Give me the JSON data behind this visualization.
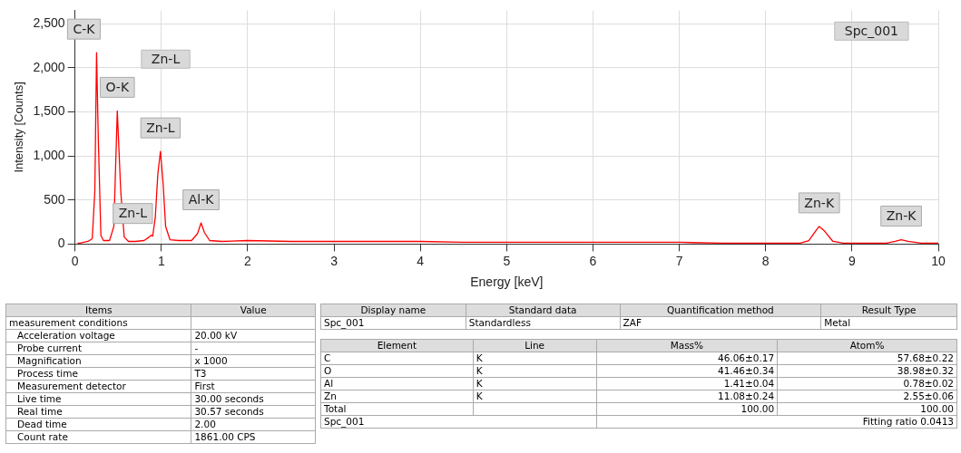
{
  "chart_data": [
    {
      "type": "line",
      "xlabel": "Energy [keV]",
      "ylabel": "Intensity [Counts]",
      "xlim": [
        0,
        10
      ],
      "xticks": [
        0,
        1,
        2,
        3,
        4,
        5,
        6,
        7,
        8,
        9,
        10
      ],
      "ylim": [
        0,
        2650
      ],
      "yticks": [
        0,
        500,
        {
          "value": 1000,
          "label": "1,000"
        },
        {
          "value": 1500,
          "label": "1,500"
        },
        {
          "value": 2000,
          "label": "2,000"
        },
        {
          "value": 2500,
          "label": "2,500"
        }
      ],
      "grid": true,
      "legend": false,
      "marker": "none",
      "line_style": "solid",
      "series": [
        {
          "color": "#ff0000",
          "x": [
            0.03,
            0.06,
            0.1,
            0.15,
            0.2,
            0.23,
            0.25,
            0.27,
            0.3,
            0.33,
            0.4,
            0.45,
            0.49,
            0.53,
            0.57,
            0.62,
            0.7,
            0.8,
            0.86,
            0.88,
            0.9,
            0.93,
            0.96,
            0.99,
            1.02,
            1.05,
            1.1,
            1.2,
            1.35,
            1.42,
            1.46,
            1.5,
            1.56,
            1.7,
            2,
            2.5,
            3,
            3.5,
            4,
            4.5,
            5,
            5.5,
            6,
            6.5,
            7,
            7.5,
            8,
            8.4,
            8.5,
            8.58,
            8.62,
            8.68,
            8.78,
            8.9,
            9.4,
            9.5,
            9.57,
            9.65,
            9.8,
            10
          ],
          "values": [
            10,
            10,
            20,
            30,
            60,
            600,
            2170,
            1200,
            100,
            40,
            40,
            200,
            1510,
            600,
            80,
            30,
            30,
            40,
            80,
            100,
            90,
            300,
            800,
            1050,
            700,
            200,
            50,
            40,
            40,
            120,
            240,
            130,
            40,
            30,
            40,
            30,
            30,
            30,
            30,
            20,
            20,
            20,
            20,
            20,
            20,
            10,
            10,
            10,
            40,
            150,
            200,
            150,
            30,
            10,
            10,
            30,
            50,
            30,
            10,
            10
          ]
        }
      ],
      "annotations": [
        {
          "text": "C-K",
          "x": 0.25,
          "y": 2170
        },
        {
          "text": "O-K",
          "x": 0.49,
          "y": 1510
        },
        "Zn-L",
        {
          "text": "Zn-L",
          "x": 0.99,
          "y": 1050
        },
        {
          "text": "Zn-L",
          "x": 0.88,
          "y": 100
        },
        {
          "text": "Al-K",
          "x": 1.46,
          "y": 235
        },
        {
          "text": "Zn-K",
          "x": 8.62,
          "y": 200
        },
        {
          "text": "Zn-K",
          "x": 9.57,
          "y": 50
        },
        "Spc_001"
      ]
    },
    {
      "type": "other",
      "annotations": [
        "Items",
        "Value",
        "measurement conditions",
        "Acceleration voltage",
        "20.00 kV",
        "Probe current",
        "-",
        "Magnification",
        "x 1000",
        "Process time",
        "T3",
        "Measurement detector",
        "First",
        "Live time",
        "30.00 seconds",
        "Real time",
        "30.57 seconds",
        "Dead time",
        "2.00",
        "Count rate",
        "1861.00 CPS"
      ]
    },
    {
      "type": "other",
      "annotations": [
        "Display name",
        "Standard data",
        "Quantification method",
        "Result Type",
        "Spc_001",
        "Standardless",
        "ZAF",
        "Metal"
      ]
    },
    {
      "type": "other",
      "annotations": [
        "Element",
        "Line",
        "Mass%",
        "Atom%",
        "C",
        "K",
        "46.06±0.17",
        "57.68±0.22",
        "O",
        "K",
        "41.46±0.34",
        "38.98±0.32",
        "Al",
        "K",
        "1.41±0.04",
        "0.78±0.02",
        "Zn",
        "K",
        "11.08±0.24",
        "2.55±0.06",
        "Total",
        "100.00",
        "100.00",
        "Spc_001",
        "Fitting ratio 0.0413"
      ]
    }
  ]
}
